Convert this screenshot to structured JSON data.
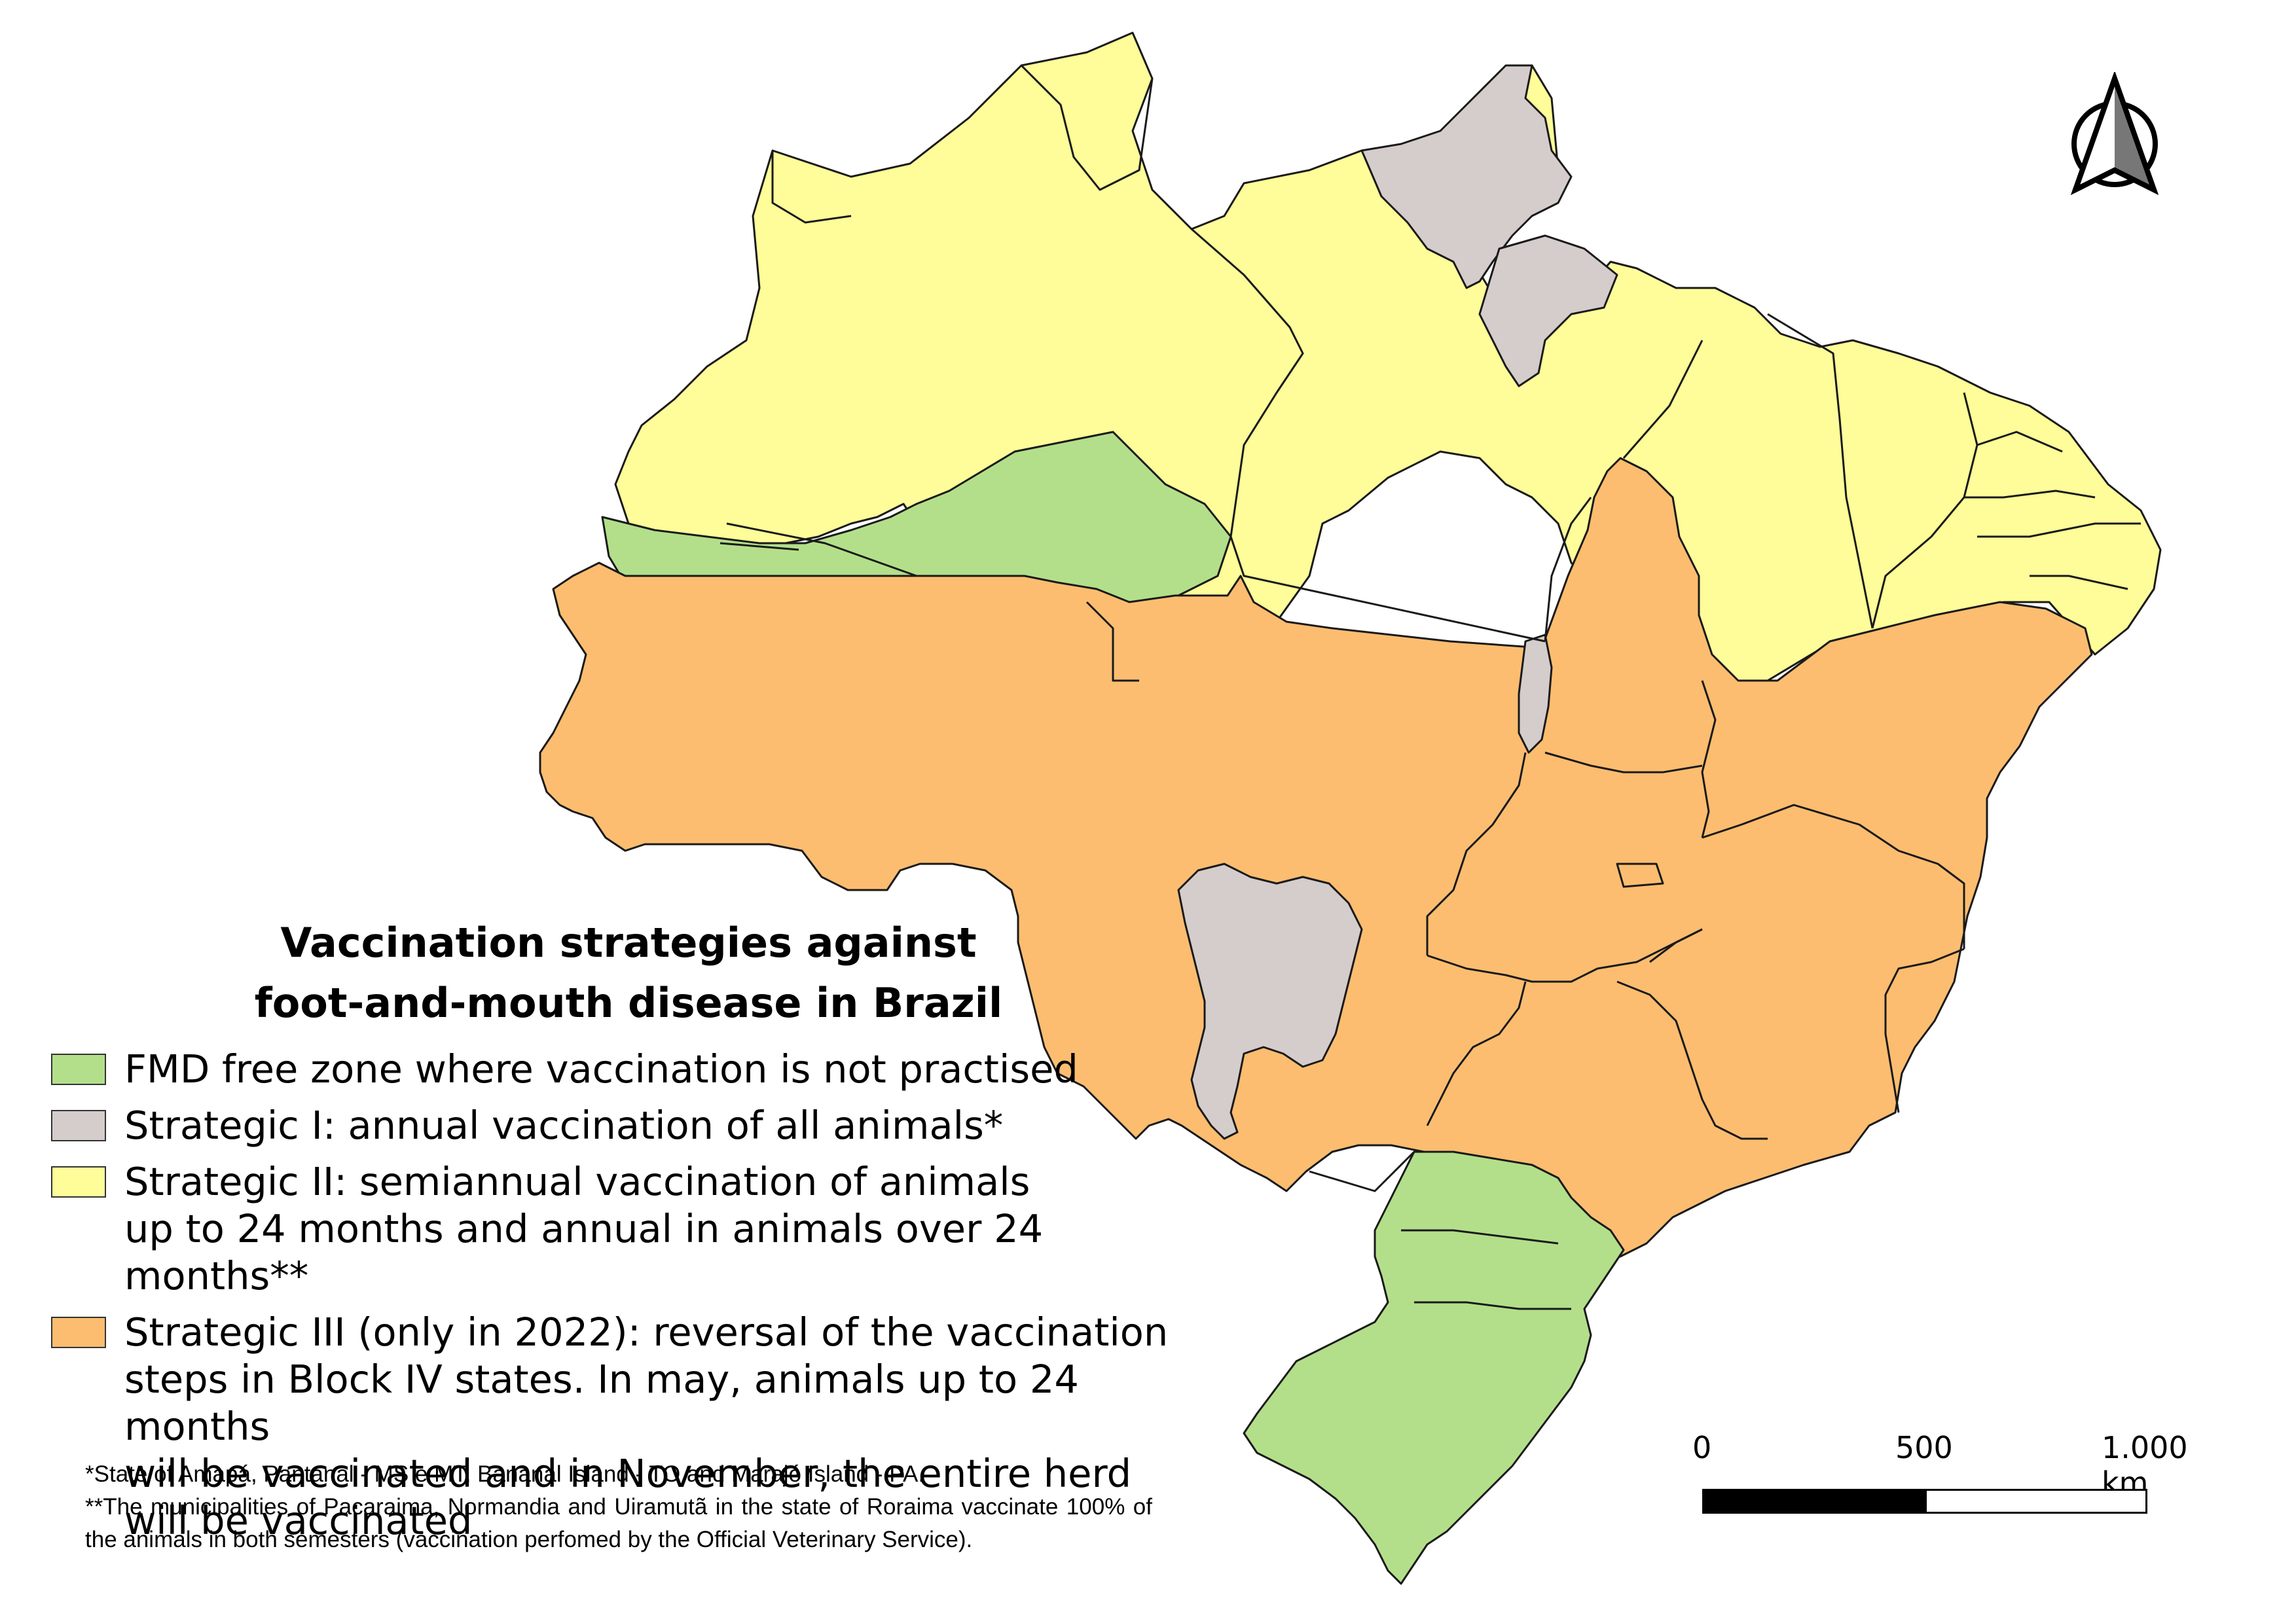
{
  "map": {
    "title_line1": "Vaccination strategies against",
    "title_line2": "foot-and-mouth disease in Brazil",
    "colors": {
      "free_zone": "#b3df8a",
      "strategic_1": "#d4cdcb",
      "strategic_2": "#fefd99",
      "strategic_3": "#fcbd70",
      "border": "#1a1a1a"
    },
    "legend": [
      {
        "text": "FMD free zone where vaccination is not practised",
        "color": "#b3df8a"
      },
      {
        "text": "Strategic I: annual vaccination of all animals*",
        "color": "#d4cdcb"
      },
      {
        "text": "Strategic II: semiannual vaccination of animals\nup to 24 months and annual in animals over 24 months**",
        "color": "#fefd99"
      },
      {
        "text": "Strategic III (only in 2022): reversal of the vaccination\nsteps in Block IV states. In may, animals up to 24 months\nwill be vaccinated and in November, the entire herd\nwill be vaccinated",
        "color": "#fcbd70"
      }
    ],
    "footnote_1": "*State of Amapá, Pantanal - MS e MT, Bananal Island - TO and Marajó Island - PA.",
    "footnote_2": "**The municipalities of Pacaraima, Normandia and Uiramutã in the state of Roraima vaccinate 100% of the animals in both semesters (vaccination perfomed by the Official Veterinary Service).",
    "scale": {
      "label_0": "0",
      "label_mid": "500",
      "label_end": "1.000 km"
    },
    "north_arrow_icon": "north-arrow-icon"
  }
}
